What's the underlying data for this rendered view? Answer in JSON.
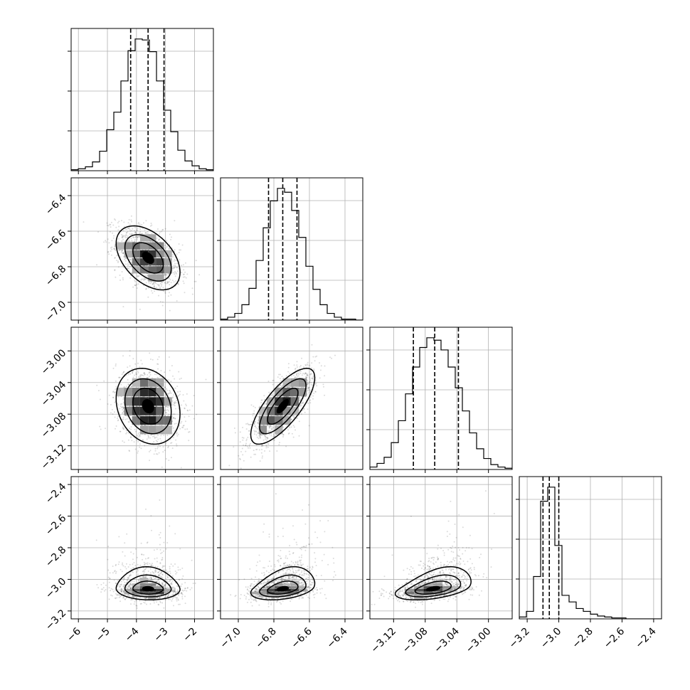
{
  "chart_data": {
    "type": "scatter",
    "description_kind": "corner",
    "parameters": [
      {
        "index": 0,
        "range": [
          -6.25,
          -1.35
        ],
        "ticks": [
          -6,
          -5,
          -4,
          -3,
          -2
        ],
        "tick_labels": [
          "−6",
          "−5",
          "−4",
          "−3",
          "−2"
        ],
        "mean": -3.6,
        "sd": 0.55,
        "quantiles": [
          -4.2,
          -3.6,
          -3.05
        ]
      },
      {
        "index": 1,
        "range": [
          -7.1,
          -6.3
        ],
        "ticks": [
          -7.0,
          -6.8,
          -6.6,
          -6.4
        ],
        "tick_labels": [
          "−7.0",
          "−6.8",
          "−6.6",
          "−6.4"
        ],
        "mean": -6.75,
        "sd": 0.09,
        "quantiles": [
          -6.83,
          -6.75,
          -6.67
        ]
      },
      {
        "index": 2,
        "range": [
          -3.15,
          -2.97
        ],
        "ticks": [
          -3.12,
          -3.08,
          -3.04,
          -3.0
        ],
        "tick_labels": [
          "−3.12",
          "−3.08",
          "−3.04",
          "−3.00"
        ],
        "mean": -3.07,
        "sd": 0.024,
        "quantiles": [
          -3.095,
          -3.068,
          -3.038
        ]
      },
      {
        "index": 3,
        "range": [
          -3.25,
          -2.35
        ],
        "ticks": [
          -3.2,
          -3.0,
          -2.8,
          -2.6,
          -2.4
        ],
        "tick_labels": [
          "−3.2",
          "−3.0",
          "−2.8",
          "−2.6",
          "−2.4"
        ],
        "mean": -3.06,
        "sd": 0.035,
        "quantiles": [
          -3.1,
          -3.06,
          -3.0
        ]
      }
    ],
    "correlations": [
      {
        "pair": [
          0,
          1
        ],
        "rho": -0.45
      },
      {
        "pair": [
          0,
          2
        ],
        "rho": -0.2
      },
      {
        "pair": [
          1,
          2
        ],
        "rho": 0.75
      },
      {
        "pair": [
          0,
          3
        ],
        "rho": -0.05
      },
      {
        "pair": [
          1,
          3
        ],
        "rho": 0.35
      },
      {
        "pair": [
          2,
          3
        ],
        "rho": 0.45
      }
    ],
    "histograms": [
      {
        "param": 0,
        "bins": [
          -6.25,
          -1.35
        ],
        "counts": [
          1,
          2,
          4,
          9,
          20,
          42,
          60,
          92,
          123,
          135,
          134,
          122,
          92,
          62,
          40,
          21,
          10,
          5,
          2,
          1
        ]
      },
      {
        "param": 1,
        "bins": [
          -7.1,
          -6.3
        ],
        "counts": [
          1,
          3,
          7,
          16,
          33,
          62,
          96,
          124,
          137,
          133,
          114,
          86,
          56,
          32,
          16,
          7,
          3,
          1,
          1,
          0
        ]
      },
      {
        "param": 2,
        "bins": [
          -3.15,
          -2.97
        ],
        "counts": [
          2,
          5,
          10,
          22,
          40,
          62,
          84,
          100,
          108,
          106,
          98,
          84,
          67,
          48,
          30,
          17,
          9,
          4,
          2,
          1
        ]
      },
      {
        "param": 3,
        "bins": [
          -3.25,
          -2.35
        ],
        "counts": [
          2,
          8,
          45,
          125,
          140,
          78,
          25,
          18,
          11,
          8,
          5,
          3,
          2,
          1,
          1,
          0,
          0,
          0,
          0,
          0
        ]
      }
    ],
    "legend": "none",
    "grid": true
  }
}
